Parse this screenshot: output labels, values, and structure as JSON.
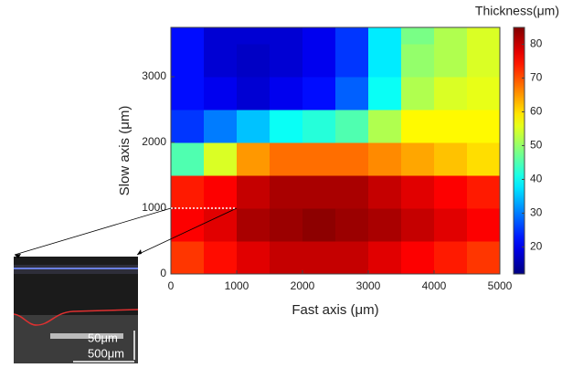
{
  "chart_data": {
    "type": "heatmap",
    "xlabel": "Fast axis (μm)",
    "ylabel": "Slow axis (μm)",
    "colorbar_label": "Thickness(μm)",
    "colormap": "jet",
    "xbins": [
      0,
      500,
      1000,
      1500,
      2000,
      2500,
      3000,
      3500,
      4000,
      4500,
      5000
    ],
    "ybins": [
      0,
      500,
      1000,
      1500,
      2000,
      2500,
      3000,
      3500,
      3750
    ],
    "values": [
      [
        72,
        75,
        78,
        80,
        80,
        80,
        78,
        76,
        74,
        72
      ],
      [
        76,
        78,
        82,
        83,
        84,
        83,
        82,
        80,
        78,
        76
      ],
      [
        74,
        76,
        80,
        82,
        82,
        82,
        80,
        78,
        76,
        74
      ],
      [
        45,
        55,
        65,
        68,
        68,
        68,
        66,
        64,
        62,
        60
      ],
      [
        25,
        30,
        35,
        40,
        42,
        45,
        52,
        58,
        58,
        58
      ],
      [
        22,
        20,
        18,
        20,
        22,
        28,
        40,
        52,
        55,
        56
      ],
      [
        22,
        18,
        17,
        18,
        20,
        25,
        38,
        50,
        52,
        55
      ],
      [
        22,
        18,
        18,
        18,
        20,
        25,
        38,
        48,
        52,
        55
      ]
    ],
    "xlim": [
      0,
      5000
    ],
    "ylim": [
      0,
      3750
    ],
    "xticks": [
      0,
      1000,
      2000,
      3000,
      4000,
      5000
    ],
    "yticks": [
      0,
      1000,
      2000,
      3000
    ],
    "clim": [
      12,
      85
    ],
    "cticks": [
      20,
      30,
      40,
      50,
      60,
      70,
      80
    ],
    "cross_section": {
      "x": [
        0,
        1000
      ],
      "y": 1000
    }
  },
  "inset": {
    "scale_height": "50μm",
    "scale_width": "500μm"
  }
}
